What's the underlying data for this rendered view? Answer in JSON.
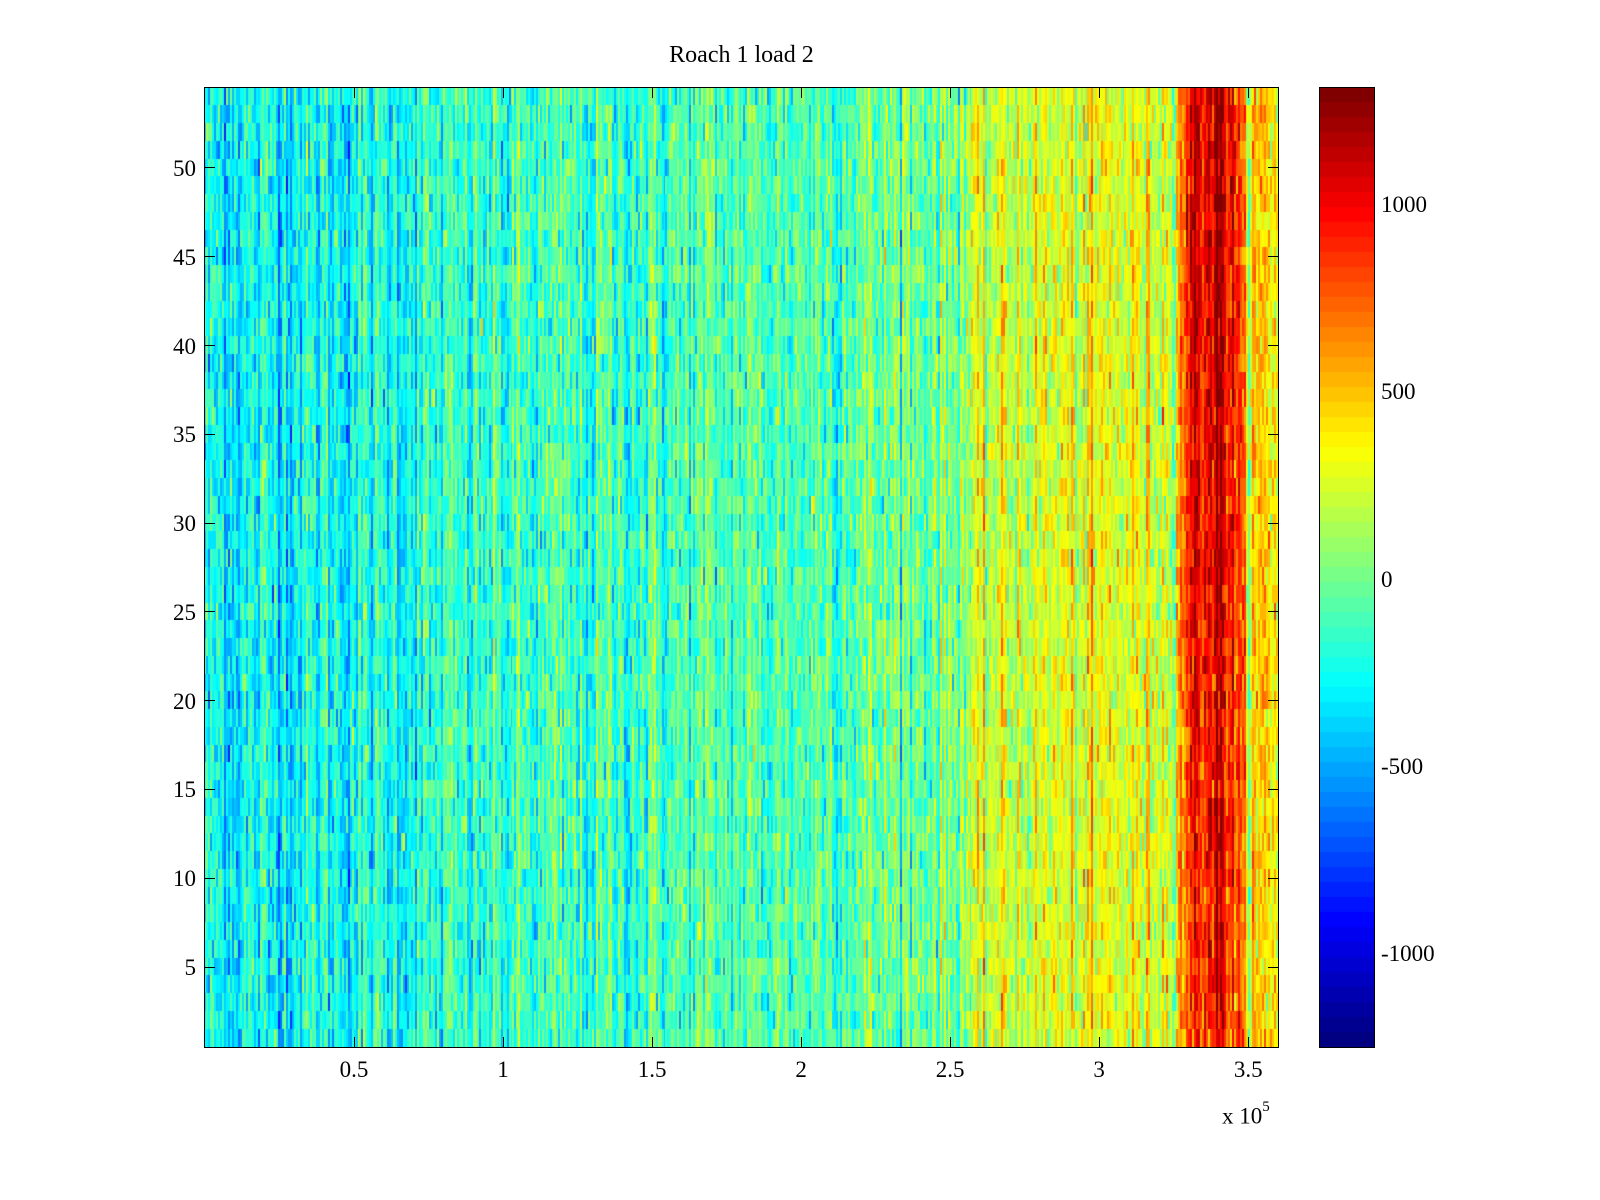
{
  "chart_data": {
    "type": "heatmap",
    "title": "Roach 1 load 2",
    "xlabel": "",
    "ylabel": "",
    "x_exponent_label": "x 10",
    "x_exponent": "5",
    "xlim": [
      0,
      360000
    ],
    "ylim": [
      0.5,
      54.5
    ],
    "rows": 54,
    "columns": 540,
    "x_ticks": [
      50000,
      100000,
      150000,
      200000,
      250000,
      300000,
      350000
    ],
    "x_tick_labels": [
      "0.5",
      "1",
      "1.5",
      "2",
      "2.5",
      "3",
      "3.5"
    ],
    "y_ticks": [
      5,
      10,
      15,
      20,
      25,
      30,
      35,
      40,
      45,
      50
    ],
    "y_tick_labels": [
      "5",
      "10",
      "15",
      "20",
      "25",
      "30",
      "35",
      "40",
      "45",
      "50"
    ],
    "colormap": "jet",
    "colormap_levels": 64,
    "clim": [
      -1250,
      1310
    ],
    "colorbar_ticks": [
      1000,
      500,
      0,
      -500,
      -1000
    ],
    "colorbar_tick_labels": [
      "1000",
      "500",
      "0",
      "-500",
      "-1000"
    ],
    "mean_profile_x": [
      0,
      50000,
      100000,
      150000,
      200000,
      250000,
      265000,
      300000,
      325000,
      330000,
      340000,
      345000,
      350000,
      360000
    ],
    "mean_profile_value": [
      -280,
      -250,
      -170,
      -130,
      -80,
      20,
      230,
      260,
      300,
      900,
      1120,
      900,
      420,
      380
    ],
    "red_band_top_rows_extra": 200,
    "noise_std": 190
  }
}
